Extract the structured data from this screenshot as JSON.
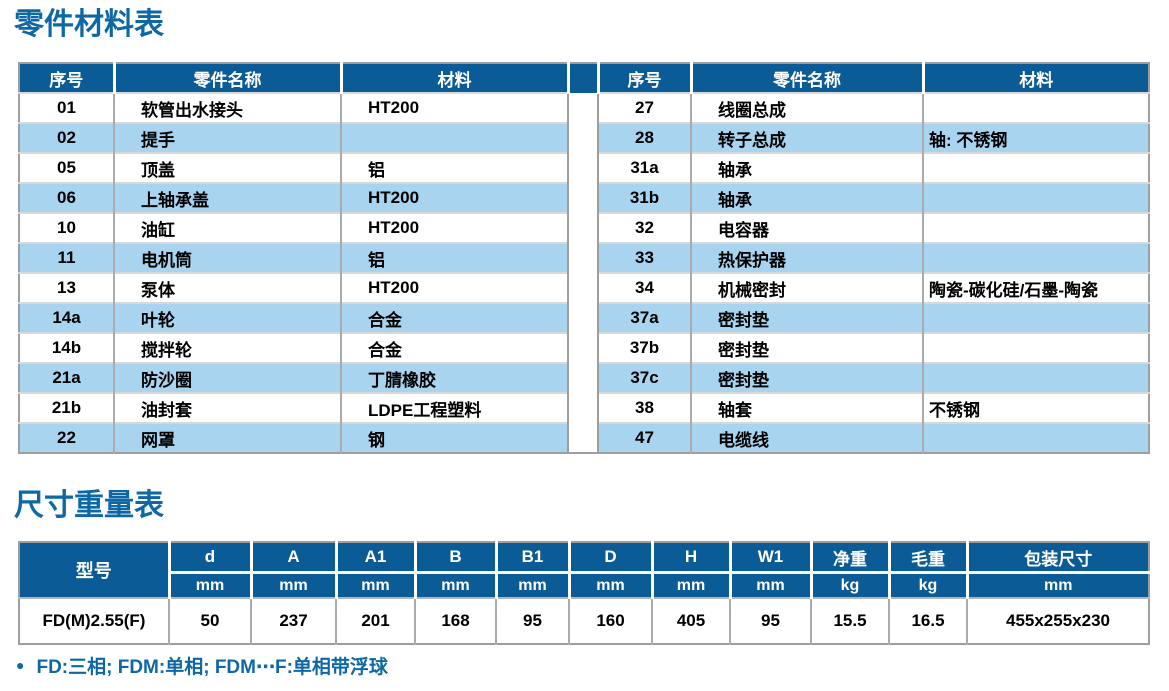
{
  "titles": {
    "parts": "零件材料表",
    "dimensions": "尺寸重量表"
  },
  "colors": {
    "header_bg": "#0b5b97",
    "stripe_blue": "#a8d4ef",
    "title_blue": "#0e68a6"
  },
  "parts_table": {
    "headers": [
      "序号",
      "零件名称",
      "材料"
    ],
    "left_rows": [
      [
        "01",
        "软管出水接头",
        "HT200"
      ],
      [
        "02",
        "提手",
        ""
      ],
      [
        "05",
        "顶盖",
        "铝"
      ],
      [
        "06",
        "上轴承盖",
        "HT200"
      ],
      [
        "10",
        "油缸",
        "HT200"
      ],
      [
        "11",
        "电机筒",
        "铝"
      ],
      [
        "13",
        "泵体",
        "HT200"
      ],
      [
        "14a",
        "叶轮",
        "合金"
      ],
      [
        "14b",
        "搅拌轮",
        "合金"
      ],
      [
        "21a",
        "防沙圈",
        "丁腈橡胶"
      ],
      [
        "21b",
        "油封套",
        "LDPE工程塑料"
      ],
      [
        "22",
        "网罩",
        "钢"
      ]
    ],
    "right_rows": [
      [
        "27",
        "线圈总成",
        ""
      ],
      [
        "28",
        "转子总成",
        "轴: 不锈钢"
      ],
      [
        "31a",
        "轴承",
        ""
      ],
      [
        "31b",
        "轴承",
        ""
      ],
      [
        "32",
        "电容器",
        ""
      ],
      [
        "33",
        "热保护器",
        ""
      ],
      [
        "34",
        "机械密封",
        "陶瓷-碳化硅/石墨-陶瓷"
      ],
      [
        "37a",
        "密封垫",
        ""
      ],
      [
        "37b",
        "密封垫",
        ""
      ],
      [
        "37c",
        "密封垫",
        ""
      ],
      [
        "38",
        "轴套",
        "不锈钢"
      ],
      [
        "47",
        "电缆线",
        ""
      ]
    ]
  },
  "dimension_table": {
    "model_header": "型号",
    "columns": [
      {
        "label": "d",
        "unit": "mm"
      },
      {
        "label": "A",
        "unit": "mm"
      },
      {
        "label": "A1",
        "unit": "mm"
      },
      {
        "label": "B",
        "unit": "mm"
      },
      {
        "label": "B1",
        "unit": "mm"
      },
      {
        "label": "D",
        "unit": "mm"
      },
      {
        "label": "H",
        "unit": "mm"
      },
      {
        "label": "W1",
        "unit": "mm"
      },
      {
        "label": "净重",
        "unit": "kg"
      },
      {
        "label": "毛重",
        "unit": "kg"
      },
      {
        "label": "包装尺寸",
        "unit": "mm"
      }
    ],
    "row": {
      "model": "FD(M)2.55(F)",
      "values": [
        "50",
        "237",
        "201",
        "168",
        "95",
        "160",
        "405",
        "95",
        "15.5",
        "16.5",
        "455x255x230"
      ]
    }
  },
  "footnote": {
    "bullet": "●",
    "text": "FD:三相; FDM:单相; FDM⋯F:单相带浮球"
  }
}
